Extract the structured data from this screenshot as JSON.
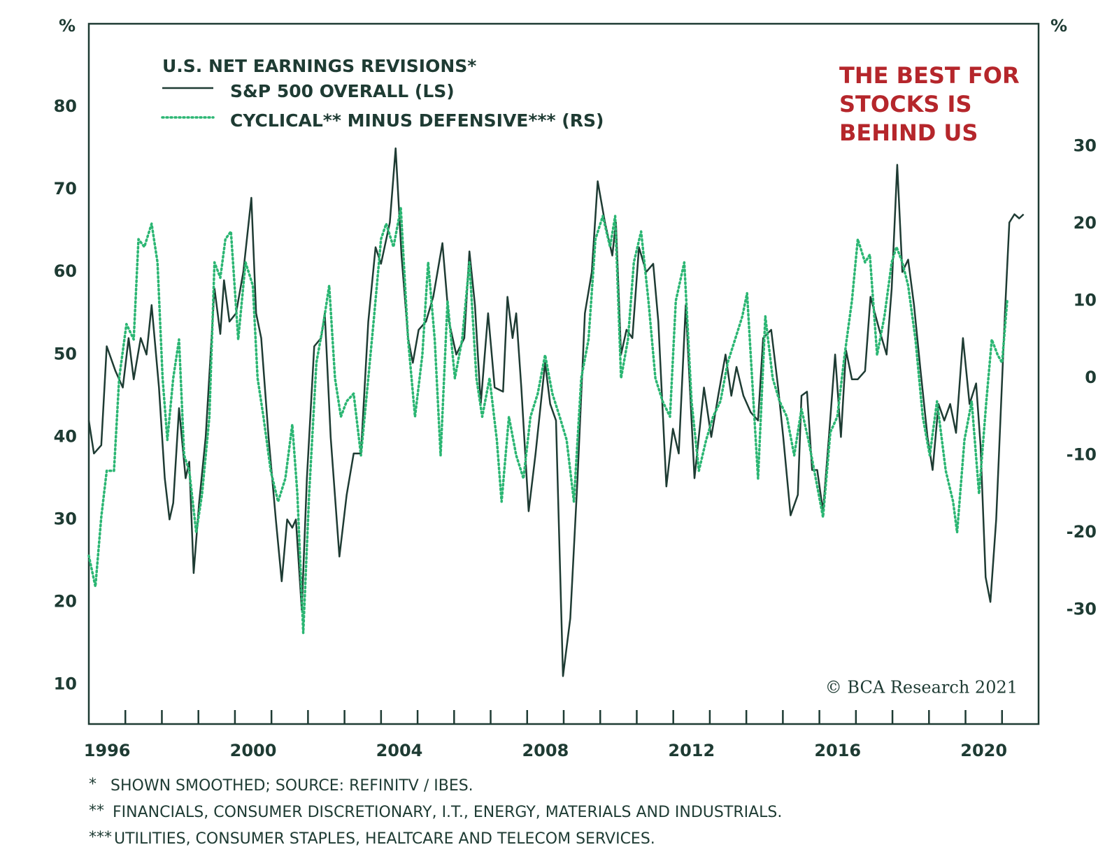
{
  "chart_data": {
    "type": "line",
    "title": "U.S. NET EARNINGS REVISIONS*",
    "y_unit": "%",
    "y2_unit": "%",
    "annotation": [
      "THE BEST FOR",
      "STOCKS IS",
      "BEHIND US"
    ],
    "source": "© BCA Research 2021",
    "footnotes": [
      {
        "marker": "*",
        "text": "SHOWN SMOOTHED; SOURCE: REFINITV / IBES."
      },
      {
        "marker": "**",
        "text": "FINANCIALS, CONSUMER DISCRETIONARY, I.T., ENERGY, MATERIALS AND INDUSTRIALS."
      },
      {
        "marker": "***",
        "text": "UTILITIES, CONSUMER STAPLES, HEALTCARE AND TELECOM SERVICES."
      }
    ],
    "xlim": [
      1996,
      2022
    ],
    "xticks": [
      {
        "value": 1996.5,
        "label": "1996"
      },
      {
        "value": 2000.5,
        "label": "2000"
      },
      {
        "value": 2004.5,
        "label": "2004"
      },
      {
        "value": 2008.5,
        "label": "2008"
      },
      {
        "value": 2012.5,
        "label": "2012"
      },
      {
        "value": 2016.5,
        "label": "2016"
      },
      {
        "value": 2020.5,
        "label": "2020"
      }
    ],
    "xtick_marks": [
      1997,
      1998,
      1999,
      2000,
      2001,
      2002,
      2003,
      2004,
      2005,
      2006,
      2007,
      2008,
      2009,
      2010,
      2011,
      2012,
      2013,
      2014,
      2015,
      2016,
      2017,
      2018,
      2019,
      2020,
      2021
    ],
    "ylim": [
      5.2,
      90.1
    ],
    "yticks": [
      10,
      20,
      30,
      40,
      50,
      60,
      70,
      80
    ],
    "y2lim": [
      -44.8,
      45.9
    ],
    "y2ticks": [
      -30,
      -20,
      -10,
      0,
      10,
      20,
      30
    ],
    "grid": false,
    "series": [
      {
        "name": "S&P 500 OVERALL (LS)",
        "color": "#1e3b33",
        "style": "solid",
        "x": [
          1996.0,
          1996.14,
          1996.34,
          1996.49,
          1996.73,
          1996.93,
          1997.09,
          1997.23,
          1997.42,
          1997.58,
          1997.72,
          1997.92,
          1998.08,
          1998.21,
          1998.31,
          1998.47,
          1998.65,
          1998.75,
          1998.87,
          1999.02,
          1999.2,
          1999.44,
          1999.6,
          1999.7,
          1999.85,
          2000.03,
          2000.23,
          2000.45,
          2000.58,
          2000.72,
          2000.92,
          2001.12,
          2001.28,
          2001.43,
          2001.57,
          2001.67,
          2001.83,
          2001.97,
          2002.17,
          2002.36,
          2002.46,
          2002.62,
          2002.86,
          2003.06,
          2003.25,
          2003.45,
          2003.65,
          2003.85,
          2004.0,
          2004.24,
          2004.4,
          2004.56,
          2004.74,
          2004.87,
          2005.03,
          2005.23,
          2005.43,
          2005.68,
          2005.86,
          2006.06,
          2006.28,
          2006.42,
          2006.57,
          2006.73,
          2006.93,
          2007.11,
          2007.34,
          2007.46,
          2007.6,
          2007.7,
          2007.84,
          2008.04,
          2008.23,
          2008.49,
          2008.63,
          2008.79,
          2008.98,
          2009.18,
          2009.38,
          2009.58,
          2009.77,
          2009.93,
          2010.13,
          2010.33,
          2010.43,
          2010.57,
          2010.72,
          2010.88,
          2011.06,
          2011.26,
          2011.45,
          2011.59,
          2011.81,
          2011.99,
          2012.15,
          2012.34,
          2012.58,
          2012.84,
          2013.04,
          2013.23,
          2013.43,
          2013.59,
          2013.73,
          2013.92,
          2014.12,
          2014.32,
          2014.46,
          2014.68,
          2014.87,
          2015.01,
          2015.21,
          2015.41,
          2015.51,
          2015.66,
          2015.8,
          2015.94,
          2016.1,
          2016.26,
          2016.43,
          2016.59,
          2016.73,
          2016.89,
          2017.05,
          2017.25,
          2017.4,
          2017.64,
          2017.84,
          2017.98,
          2018.13,
          2018.27,
          2018.43,
          2018.59,
          2018.77,
          2018.96,
          2019.1,
          2019.26,
          2019.42,
          2019.58,
          2019.74,
          2019.93,
          2020.11,
          2020.29,
          2020.41,
          2020.55,
          2020.68,
          2020.84,
          2021.08,
          2021.2,
          2021.34,
          2021.47,
          2021.59
        ],
        "values": [
          42,
          38,
          39,
          51,
          48,
          46,
          52,
          47,
          52,
          50,
          56,
          46,
          35,
          30,
          32,
          43.5,
          35,
          37,
          23.5,
          32,
          40,
          58,
          52.5,
          59,
          54,
          55,
          60,
          69,
          55,
          52,
          40,
          30,
          22.5,
          30,
          29,
          30,
          19,
          35,
          51,
          52,
          55,
          40,
          25.5,
          33,
          38,
          38,
          54,
          63,
          61,
          66,
          75,
          62,
          52,
          49,
          53,
          54,
          57,
          63.5,
          54,
          50,
          52,
          62.5,
          56,
          44,
          55,
          46,
          45.5,
          57,
          52,
          55,
          46,
          31,
          38,
          49,
          44,
          42,
          11,
          18,
          35,
          55,
          60,
          71,
          66,
          62,
          66,
          50,
          53,
          52,
          63,
          60,
          61,
          54,
          34,
          41,
          38,
          56,
          35,
          46,
          40,
          45,
          50,
          45,
          48.5,
          45,
          43,
          42,
          52,
          53,
          46,
          40,
          30.5,
          33,
          45,
          45.5,
          36,
          36,
          31,
          40,
          50,
          40,
          50.5,
          47,
          47,
          48,
          57,
          53,
          50,
          58,
          73,
          60,
          61.5,
          56,
          48,
          40,
          36,
          44,
          42,
          44,
          40.5,
          52,
          44,
          46.5,
          39,
          23,
          20,
          30,
          55,
          66,
          67,
          66.5,
          67
        ]
      },
      {
        "name": "CYCLICAL** MINUS DEFENSIVE*** (RS)",
        "color": "#2bb673",
        "style": "dotted",
        "axis": "y2",
        "x": [
          1996.0,
          1996.18,
          1996.34,
          1996.49,
          1996.69,
          1996.83,
          1997.03,
          1997.23,
          1997.36,
          1997.52,
          1997.72,
          1997.88,
          1998.02,
          1998.15,
          1998.31,
          1998.47,
          1998.61,
          1998.75,
          1998.94,
          1999.1,
          1999.3,
          1999.44,
          1999.6,
          1999.74,
          1999.89,
          2000.09,
          2000.29,
          2000.49,
          2000.62,
          2000.78,
          2000.98,
          2001.18,
          2001.38,
          2001.57,
          2001.71,
          2001.87,
          2002.03,
          2002.23,
          2002.42,
          2002.58,
          2002.74,
          2002.9,
          2003.06,
          2003.25,
          2003.45,
          2003.65,
          2003.81,
          2004.0,
          2004.14,
          2004.34,
          2004.54,
          2004.74,
          2004.93,
          2005.13,
          2005.29,
          2005.47,
          2005.63,
          2005.82,
          2006.02,
          2006.22,
          2006.42,
          2006.61,
          2006.77,
          2006.97,
          2007.17,
          2007.3,
          2007.5,
          2007.7,
          2007.9,
          2008.09,
          2008.29,
          2008.49,
          2008.69,
          2008.89,
          2009.08,
          2009.28,
          2009.48,
          2009.68,
          2009.87,
          2010.07,
          2010.27,
          2010.41,
          2010.57,
          2010.76,
          2010.92,
          2011.12,
          2011.32,
          2011.51,
          2011.71,
          2011.91,
          2012.07,
          2012.3,
          2012.5,
          2012.7,
          2012.9,
          2013.09,
          2013.29,
          2013.49,
          2013.69,
          2013.89,
          2014.02,
          2014.22,
          2014.32,
          2014.52,
          2014.72,
          2014.91,
          2015.11,
          2015.31,
          2015.51,
          2015.7,
          2015.9,
          2016.1,
          2016.3,
          2016.49,
          2016.69,
          2016.89,
          2017.05,
          2017.25,
          2017.38,
          2017.58,
          2017.78,
          2017.98,
          2018.11,
          2018.27,
          2018.43,
          2018.63,
          2018.83,
          2019.02,
          2019.22,
          2019.46,
          2019.66,
          2019.77,
          2019.97,
          2020.17,
          2020.37,
          2020.57,
          2020.72,
          2020.88,
          2021.0,
          2021.14
        ],
        "values": [
          -23,
          -27,
          -18,
          -12,
          -12,
          0,
          7,
          5,
          18,
          17,
          20,
          15,
          0,
          -8,
          0,
          5,
          -10,
          -12,
          -20,
          -15,
          -5,
          15,
          13,
          18,
          19,
          5,
          15,
          12,
          0,
          -5,
          -12,
          -16,
          -13,
          -6,
          -15,
          -33,
          -15,
          2,
          7,
          12,
          0,
          -5,
          -3,
          -2,
          -10,
          0,
          8,
          18,
          20,
          17,
          22,
          5,
          -5,
          3,
          15,
          5,
          -10,
          10,
          0,
          5,
          15,
          0,
          -5,
          0,
          -8,
          -16,
          -5,
          -10,
          -13,
          -5,
          -2,
          3,
          -2,
          -5,
          -8,
          -16,
          0,
          5,
          18,
          21,
          17,
          21,
          0,
          5,
          15,
          19,
          10,
          0,
          -3,
          -5,
          10,
          15,
          -3,
          -12,
          -8,
          -5,
          -3,
          2,
          5,
          8,
          11,
          -5,
          -13,
          8,
          0,
          -3,
          -5,
          -10,
          -4,
          -8,
          -13,
          -18,
          -7,
          -5,
          3,
          10,
          18,
          15,
          16,
          3,
          8,
          15,
          17,
          15,
          12,
          5,
          -5,
          -10,
          -3,
          -12,
          -16,
          -20,
          -8,
          -3,
          -15,
          -3,
          5,
          3,
          2,
          10
        ]
      }
    ]
  }
}
